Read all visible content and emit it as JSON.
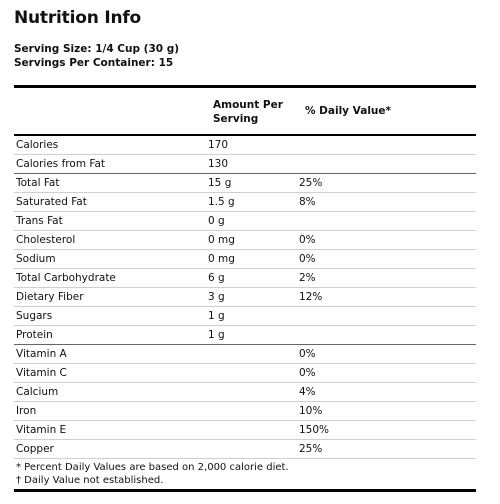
{
  "title": "Nutrition Info",
  "serving": {
    "size": "Serving Size: 1/4 Cup (30 g)",
    "per_container": "Servings Per Container: 15"
  },
  "header": {
    "amount": "Amount Per Serving",
    "daily_value": "% Daily Value*"
  },
  "rows": [
    {
      "name": "Calories",
      "amount": "170",
      "dv": ""
    },
    {
      "name": "Calories from Fat",
      "amount": "130",
      "dv": ""
    },
    {
      "name": "Total Fat",
      "amount": "15 g",
      "dv": "25%"
    },
    {
      "name": "Saturated Fat",
      "amount": "1.5 g",
      "dv": "8%"
    },
    {
      "name": "Trans Fat",
      "amount": "0 g",
      "dv": ""
    },
    {
      "name": "Cholesterol",
      "amount": "0 mg",
      "dv": "0%"
    },
    {
      "name": "Sodium",
      "amount": "0 mg",
      "dv": "0%"
    },
    {
      "name": "Total Carbohydrate",
      "amount": "6 g",
      "dv": "2%"
    },
    {
      "name": "Dietary Fiber",
      "amount": "3 g",
      "dv": "12%"
    },
    {
      "name": "Sugars",
      "amount": "1 g",
      "dv": ""
    },
    {
      "name": "Protein",
      "amount": "1 g",
      "dv": ""
    },
    {
      "name": "Vitamin A",
      "amount": "",
      "dv": "0%"
    },
    {
      "name": "Vitamin C",
      "amount": "",
      "dv": "0%"
    },
    {
      "name": "Calcium",
      "amount": "",
      "dv": "4%"
    },
    {
      "name": "Iron",
      "amount": "",
      "dv": "10%"
    },
    {
      "name": "Vitamin E",
      "amount": "",
      "dv": "150%"
    },
    {
      "name": "Copper",
      "amount": "",
      "dv": "25%"
    }
  ],
  "footnotes": [
    "* Percent Daily Values are based on 2,000 calorie diet.",
    "† Daily Value not established."
  ]
}
